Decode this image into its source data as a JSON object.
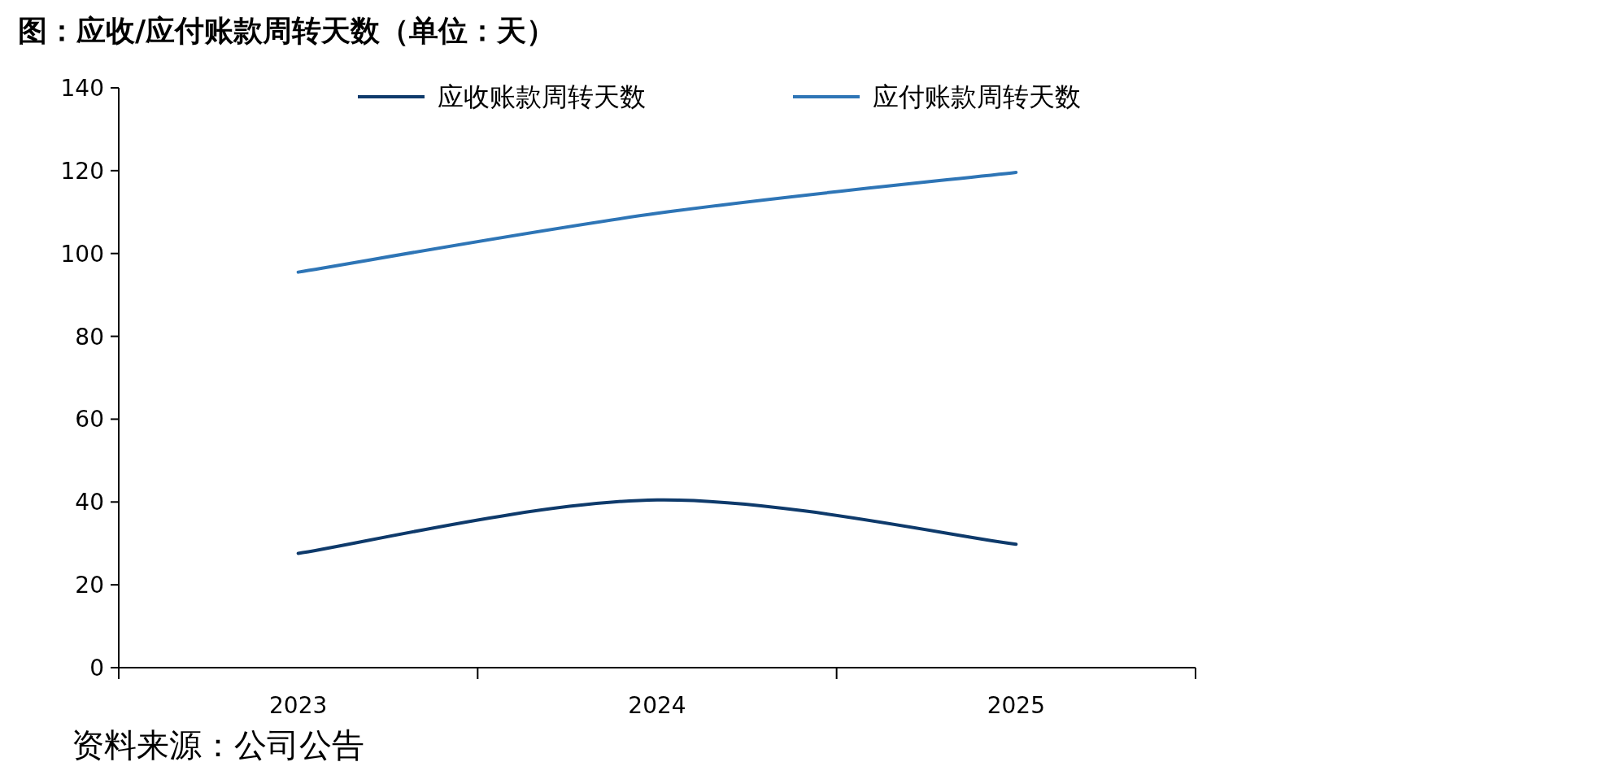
{
  "chart_data": {
    "type": "line",
    "title": "图：应收/应付账款周转天数（单位：天）",
    "categories": [
      "2023",
      "2024",
      "2025"
    ],
    "series": [
      {
        "name": "应收账款周转天数",
        "color": "#0e3a6b",
        "values": [
          27.6,
          40.5,
          29.8
        ]
      },
      {
        "name": "应付账款周转天数",
        "color": "#2e75b6",
        "values": [
          95.5,
          109.7,
          119.6
        ]
      }
    ],
    "ylim": [
      0,
      140
    ],
    "yticks": [
      0,
      20,
      40,
      60,
      80,
      100,
      120,
      140
    ],
    "legend": "top",
    "grid": false,
    "annotations": [
      "资料来源：公司公告"
    ]
  }
}
